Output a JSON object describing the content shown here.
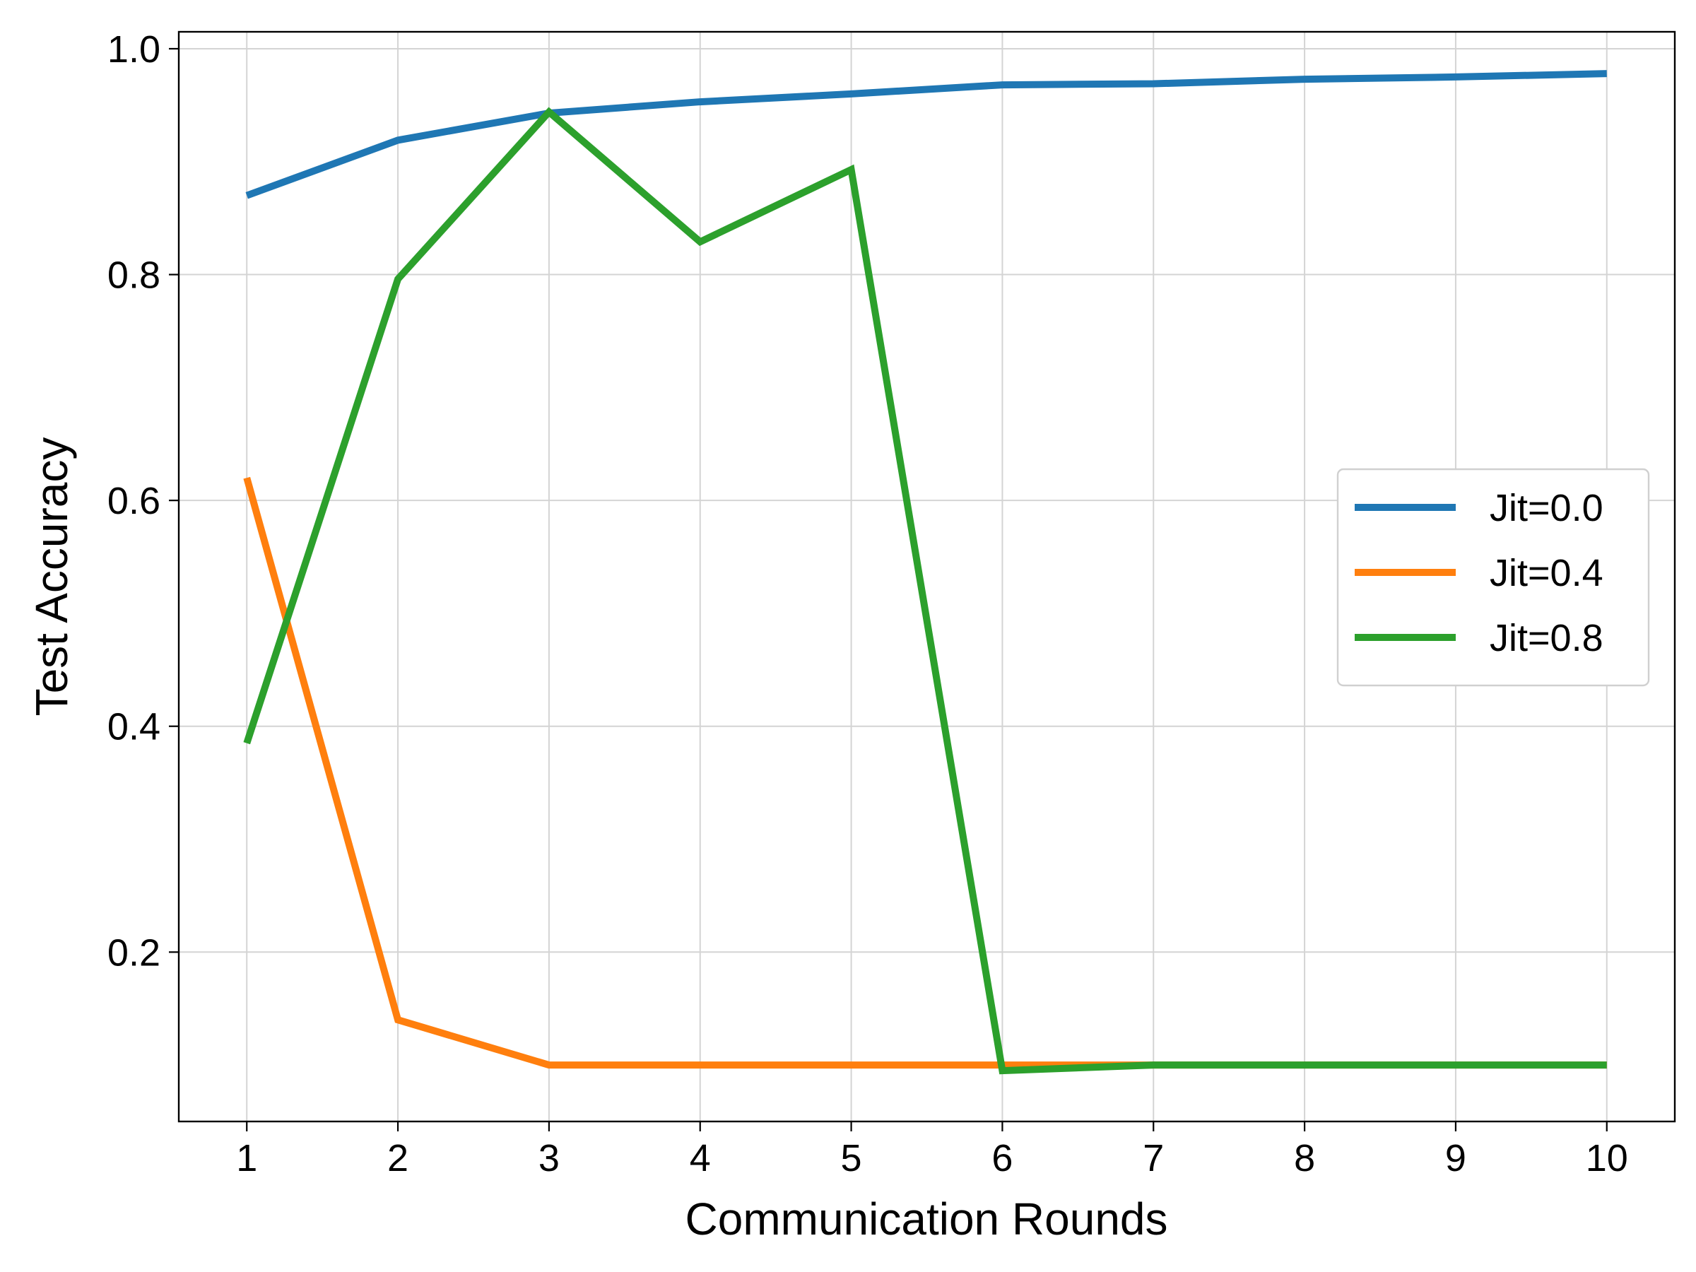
{
  "chart_data": {
    "type": "line",
    "xlabel": "Communication Rounds",
    "ylabel": "Test Accuracy",
    "x": [
      1,
      2,
      3,
      4,
      5,
      6,
      7,
      8,
      9,
      10
    ],
    "xticks": [
      "1",
      "2",
      "3",
      "4",
      "5",
      "6",
      "7",
      "8",
      "9",
      "10"
    ],
    "yticks": [
      "0.2",
      "0.4",
      "0.6",
      "0.8",
      "1.0"
    ],
    "ytick_values": [
      0.2,
      0.4,
      0.6,
      0.8,
      1.0
    ],
    "xlim": [
      0.55,
      10.45
    ],
    "ylim": [
      0.05,
      1.015
    ],
    "grid": true,
    "legend_position": "center-right",
    "series": [
      {
        "name": "Jit=0.0",
        "color": "#1f77b4",
        "values": [
          0.87,
          0.919,
          0.943,
          0.953,
          0.96,
          0.968,
          0.969,
          0.973,
          0.975,
          0.978
        ]
      },
      {
        "name": "Jit=0.4",
        "color": "#ff7f0e",
        "values": [
          0.62,
          0.14,
          0.1,
          0.1,
          0.1,
          0.1,
          0.1,
          0.1,
          0.1,
          0.1
        ]
      },
      {
        "name": "Jit=0.8",
        "color": "#2ca02c",
        "values": [
          0.385,
          0.796,
          0.944,
          0.829,
          0.893,
          0.095,
          0.1,
          0.1,
          0.1,
          0.1
        ]
      }
    ]
  }
}
